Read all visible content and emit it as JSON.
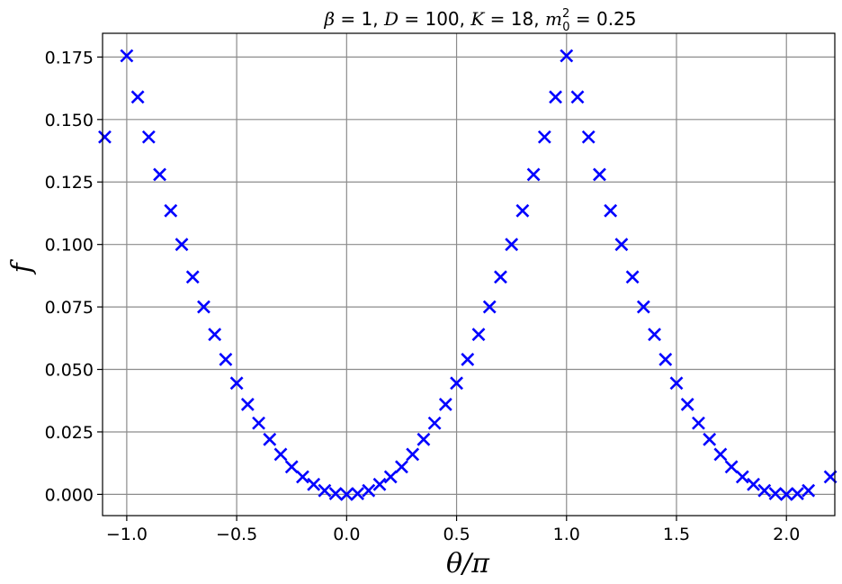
{
  "chart_data": {
    "type": "scatter",
    "title": {
      "beta": "β",
      "beta_value": " = 1, ",
      "D": "D",
      "D_value": " = 100, ",
      "K": "K",
      "K_value": " = 18, ",
      "m": "m",
      "m_sup": "2",
      "m_sub": "0",
      "m_value": " = 0.25"
    },
    "xlabel": "θ/π",
    "ylabel": "f",
    "xlim": [
      -1.11,
      2.22
    ],
    "ylim": [
      -0.0085,
      0.1845
    ],
    "xticks": [
      -1.0,
      -0.5,
      0.0,
      0.5,
      1.0,
      1.5,
      2.0
    ],
    "xtick_labels": [
      "−1.0",
      "−0.5",
      "0.0",
      "0.5",
      "1.0",
      "1.5",
      "2.0"
    ],
    "yticks": [
      0.0,
      0.025,
      0.05,
      0.075,
      0.1,
      0.125,
      0.15,
      0.175
    ],
    "ytick_labels": [
      "0.000",
      "0.025",
      "0.050",
      "0.075",
      "0.100",
      "0.125",
      "0.150",
      "0.175"
    ],
    "grid": true,
    "marker": "x",
    "color": "#0000ff",
    "series": [
      {
        "x": [
          -1.1,
          -1.0,
          -0.95,
          -0.9,
          -0.85,
          -0.8,
          -0.75,
          -0.7,
          -0.65,
          -0.6,
          -0.55,
          -0.5,
          -0.45,
          -0.4,
          -0.35,
          -0.3,
          -0.25,
          -0.2,
          -0.15,
          -0.1,
          -0.05,
          0.0,
          0.05,
          0.1,
          0.15,
          0.2,
          0.25,
          0.3,
          0.35,
          0.4,
          0.45,
          0.5,
          0.55,
          0.6,
          0.65,
          0.7,
          0.75,
          0.8,
          0.85,
          0.9,
          0.95,
          1.0,
          1.05,
          1.1,
          1.15,
          1.2,
          1.25,
          1.3,
          1.35,
          1.4,
          1.45,
          1.5,
          1.55,
          1.6,
          1.65,
          1.7,
          1.75,
          1.8,
          1.85,
          1.9,
          1.95,
          2.0,
          2.05,
          2.1,
          2.2
        ],
        "y": [
          0.143,
          0.1755,
          0.159,
          0.143,
          0.128,
          0.1135,
          0.1,
          0.087,
          0.075,
          0.064,
          0.054,
          0.0445,
          0.036,
          0.0285,
          0.022,
          0.016,
          0.011,
          0.007,
          0.004,
          0.0015,
          0.0003,
          0.0,
          0.0003,
          0.0015,
          0.004,
          0.007,
          0.011,
          0.016,
          0.022,
          0.0285,
          0.036,
          0.0445,
          0.054,
          0.064,
          0.075,
          0.087,
          0.1,
          0.1135,
          0.128,
          0.143,
          0.159,
          0.1755,
          0.159,
          0.143,
          0.128,
          0.1135,
          0.1,
          0.087,
          0.075,
          0.064,
          0.054,
          0.0445,
          0.036,
          0.0285,
          0.022,
          0.016,
          0.011,
          0.007,
          0.004,
          0.0015,
          0.0003,
          0.0,
          0.0003,
          0.0015,
          0.007
        ]
      }
    ]
  }
}
